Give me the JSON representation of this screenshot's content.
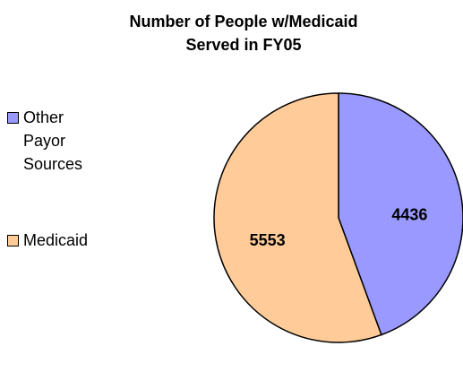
{
  "chart_data": {
    "type": "pie",
    "title": [
      "Number of People w/Medicaid",
      "Served in FY05"
    ],
    "categories": [
      "Other Payor Sources",
      "Medicaid"
    ],
    "values": [
      4436,
      5553
    ],
    "colors": [
      "#9999ff",
      "#ffcc99"
    ],
    "legend": "left"
  }
}
